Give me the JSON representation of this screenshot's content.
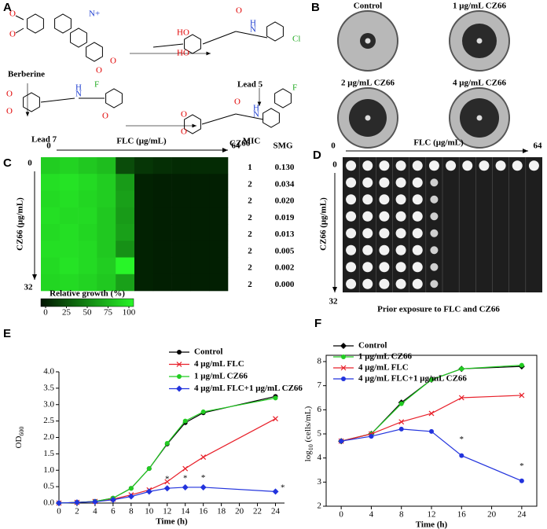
{
  "panel_a": {
    "label": "A",
    "names": [
      "Berberine",
      "Lead 5",
      "Lead 7",
      "CZ66"
    ],
    "atoms": [
      "O",
      "O",
      "N+",
      "O",
      "O",
      "HO",
      "HO",
      "O",
      "N",
      "H",
      "Cl",
      "O",
      "O",
      "H",
      "N",
      "F",
      "O",
      "O",
      "O",
      "O",
      "N",
      "H",
      "F"
    ]
  },
  "panel_b": {
    "label": "B",
    "plates": [
      "Control",
      "1 μg/mL CZ66",
      "2 μg/mL CZ66",
      "4 μg/mL CZ66"
    ]
  },
  "panel_c": {
    "label": "C",
    "x_label": "FLC (μg/mL)",
    "x_start": "0",
    "x_end": "64",
    "y_label": "CZ66 (μg/mL)",
    "y_start": "0",
    "y_end": "32",
    "mic_header": "MIC",
    "smg_header": "SMG",
    "mic": [
      "1",
      "2",
      "2",
      "2",
      "2",
      "2",
      "2",
      "2"
    ],
    "smg": [
      "0.130",
      "0.034",
      "0.020",
      "0.019",
      "0.013",
      "0.005",
      "0.002",
      "0.000"
    ],
    "growth": [
      [
        82,
        85,
        80,
        75,
        25,
        15,
        12,
        10,
        10,
        10
      ],
      [
        90,
        92,
        88,
        82,
        60,
        6,
        5,
        5,
        5,
        5
      ],
      [
        88,
        90,
        86,
        82,
        62,
        6,
        5,
        5,
        5,
        5
      ],
      [
        90,
        88,
        88,
        80,
        60,
        6,
        5,
        5,
        5,
        5
      ],
      [
        88,
        90,
        86,
        80,
        62,
        6,
        5,
        5,
        5,
        5
      ],
      [
        90,
        90,
        88,
        80,
        55,
        6,
        5,
        5,
        5,
        5
      ],
      [
        88,
        92,
        88,
        82,
        100,
        6,
        5,
        5,
        5,
        5
      ],
      [
        86,
        88,
        85,
        80,
        62,
        6,
        5,
        5,
        5,
        5
      ]
    ],
    "colorbar_title": "Relative growth (%)",
    "colorbar_ticks": [
      0,
      25,
      50,
      75,
      100
    ]
  },
  "panel_d": {
    "label": "D",
    "x_label": "FLC (μg/mL)",
    "x_start": "0",
    "x_end": "64",
    "y_label": "CZ66 (μg/mL)",
    "y_start": "0",
    "y_end": "32",
    "caption": "Prior exposure to FLC and CZ66"
  },
  "chart_data": [
    {
      "type": "line",
      "panel": "E",
      "xlabel": "Time (h)",
      "ylabel": [
        "OD",
        "600"
      ],
      "x": [
        0,
        2,
        4,
        6,
        8,
        10,
        12,
        14,
        16,
        24
      ],
      "xlim": [
        0,
        25
      ],
      "xticks": [
        0,
        2,
        4,
        6,
        8,
        10,
        12,
        14,
        16,
        18,
        20,
        22,
        24
      ],
      "ylim": [
        0,
        4
      ],
      "yticks": [
        {
          "value": 0,
          "label": "0.0"
        },
        {
          "value": 0.5,
          "label": "0.5"
        },
        {
          "value": 1,
          "label": "1.0"
        },
        {
          "value": 1.5,
          "label": "1.5"
        },
        {
          "value": 2,
          "label": "2.0"
        },
        {
          "value": 2.5,
          "label": "2.5"
        },
        {
          "value": 3,
          "label": "3.0"
        },
        {
          "value": 3.5,
          "label": "3.5"
        },
        {
          "value": 4,
          "label": "4.0"
        }
      ],
      "box": false,
      "series": [
        {
          "name": "Control",
          "color": "#000000",
          "marker": "circle",
          "values": [
            0,
            0.02,
            0.05,
            0.15,
            0.45,
            1.05,
            1.8,
            2.45,
            2.75,
            3.25
          ]
        },
        {
          "name": "4 μg/mL FLC",
          "color": "#e8202a",
          "marker": "x",
          "values": [
            0,
            0.02,
            0.05,
            0.12,
            0.25,
            0.4,
            0.65,
            1.05,
            1.4,
            2.57
          ]
        },
        {
          "name": "1 μg/mL CZ66",
          "color": "#22cc22",
          "marker": "circle",
          "values": [
            0,
            0.02,
            0.05,
            0.15,
            0.45,
            1.05,
            1.82,
            2.5,
            2.78,
            3.2
          ]
        },
        {
          "name": "4 μg/mL FLC+1 μg/mL CZ66",
          "color": "#2233dd",
          "marker": "diamond",
          "values": [
            0,
            0.02,
            0.04,
            0.1,
            0.2,
            0.35,
            0.45,
            0.48,
            0.48,
            0.35
          ]
        }
      ],
      "annotations": [
        {
          "x": 12,
          "y": 0.72,
          "text": "*"
        },
        {
          "x": 14,
          "y": 0.74,
          "text": "*"
        },
        {
          "x": 16,
          "y": 0.76,
          "text": "*"
        },
        {
          "x": 24.8,
          "y": 0.45,
          "text": "*"
        }
      ]
    },
    {
      "type": "line",
      "panel": "F",
      "xlabel": "Time (h)",
      "ylabel": [
        "log",
        "10",
        " (cells/mL)"
      ],
      "x": [
        0,
        4,
        8,
        12,
        16,
        24
      ],
      "xlim": [
        -2,
        26
      ],
      "xticks": [
        0,
        4,
        8,
        12,
        16,
        20,
        24
      ],
      "ylim": [
        2,
        8
      ],
      "yticks": [
        2,
        3,
        4,
        5,
        6,
        7,
        8
      ],
      "box": true,
      "series": [
        {
          "name": "Control",
          "color": "#000000",
          "marker": "diamond",
          "values": [
            4.7,
            5.0,
            6.3,
            7.25,
            7.7,
            7.8
          ]
        },
        {
          "name": "1 μg/mL CZ66",
          "color": "#22cc22",
          "marker": "circle",
          "values": [
            4.7,
            5.0,
            6.25,
            7.25,
            7.7,
            7.85
          ]
        },
        {
          "name": "4 μg/mL FLC",
          "color": "#e8202a",
          "marker": "x",
          "values": [
            4.7,
            5.0,
            5.5,
            5.85,
            6.5,
            6.6
          ]
        },
        {
          "name": "4 μg/mL FLC+1 μg/mL CZ66",
          "color": "#2233dd",
          "marker": "circle",
          "values": [
            4.7,
            4.9,
            5.2,
            5.1,
            4.1,
            3.05
          ]
        }
      ],
      "annotations": [
        {
          "x": 16,
          "y": 4.75,
          "text": "*"
        },
        {
          "x": 24,
          "y": 3.65,
          "text": "*"
        }
      ]
    }
  ]
}
